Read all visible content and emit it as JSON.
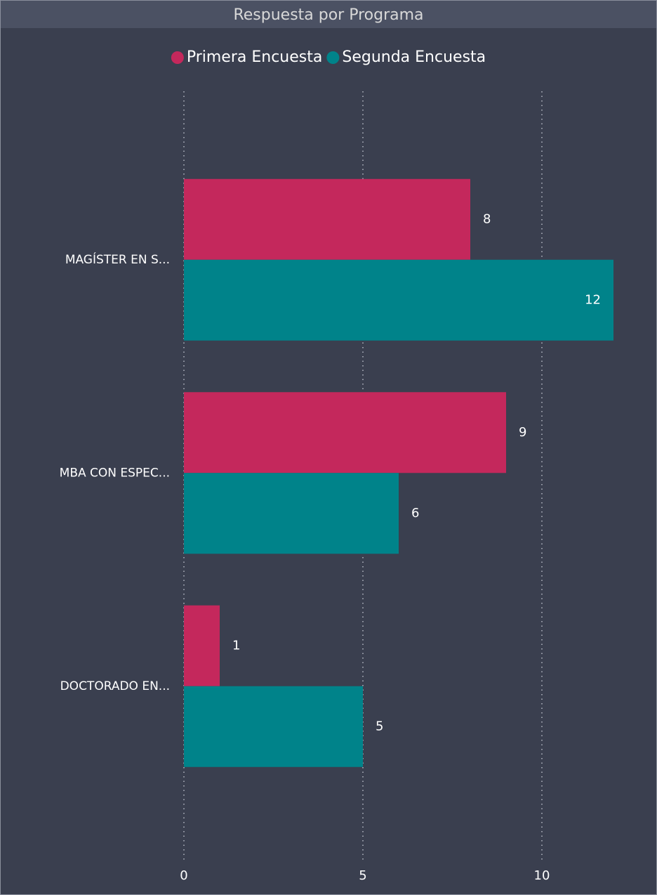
{
  "chart_data": {
    "type": "bar",
    "orientation": "horizontal",
    "title": "Respuesta por Programa",
    "categories": [
      "MAGÍSTER EN S...",
      "MBA CON ESPEC...",
      "DOCTORADO EN..."
    ],
    "series": [
      {
        "name": "Primera Encuesta",
        "color": "#c4285c",
        "values": [
          8,
          9,
          1
        ]
      },
      {
        "name": "Segunda Encuesta",
        "color": "#00838a",
        "values": [
          12,
          6,
          5
        ]
      }
    ],
    "xlim": [
      0,
      12
    ],
    "xticks": [
      0,
      5,
      10
    ],
    "grid": true,
    "legend": "top"
  }
}
